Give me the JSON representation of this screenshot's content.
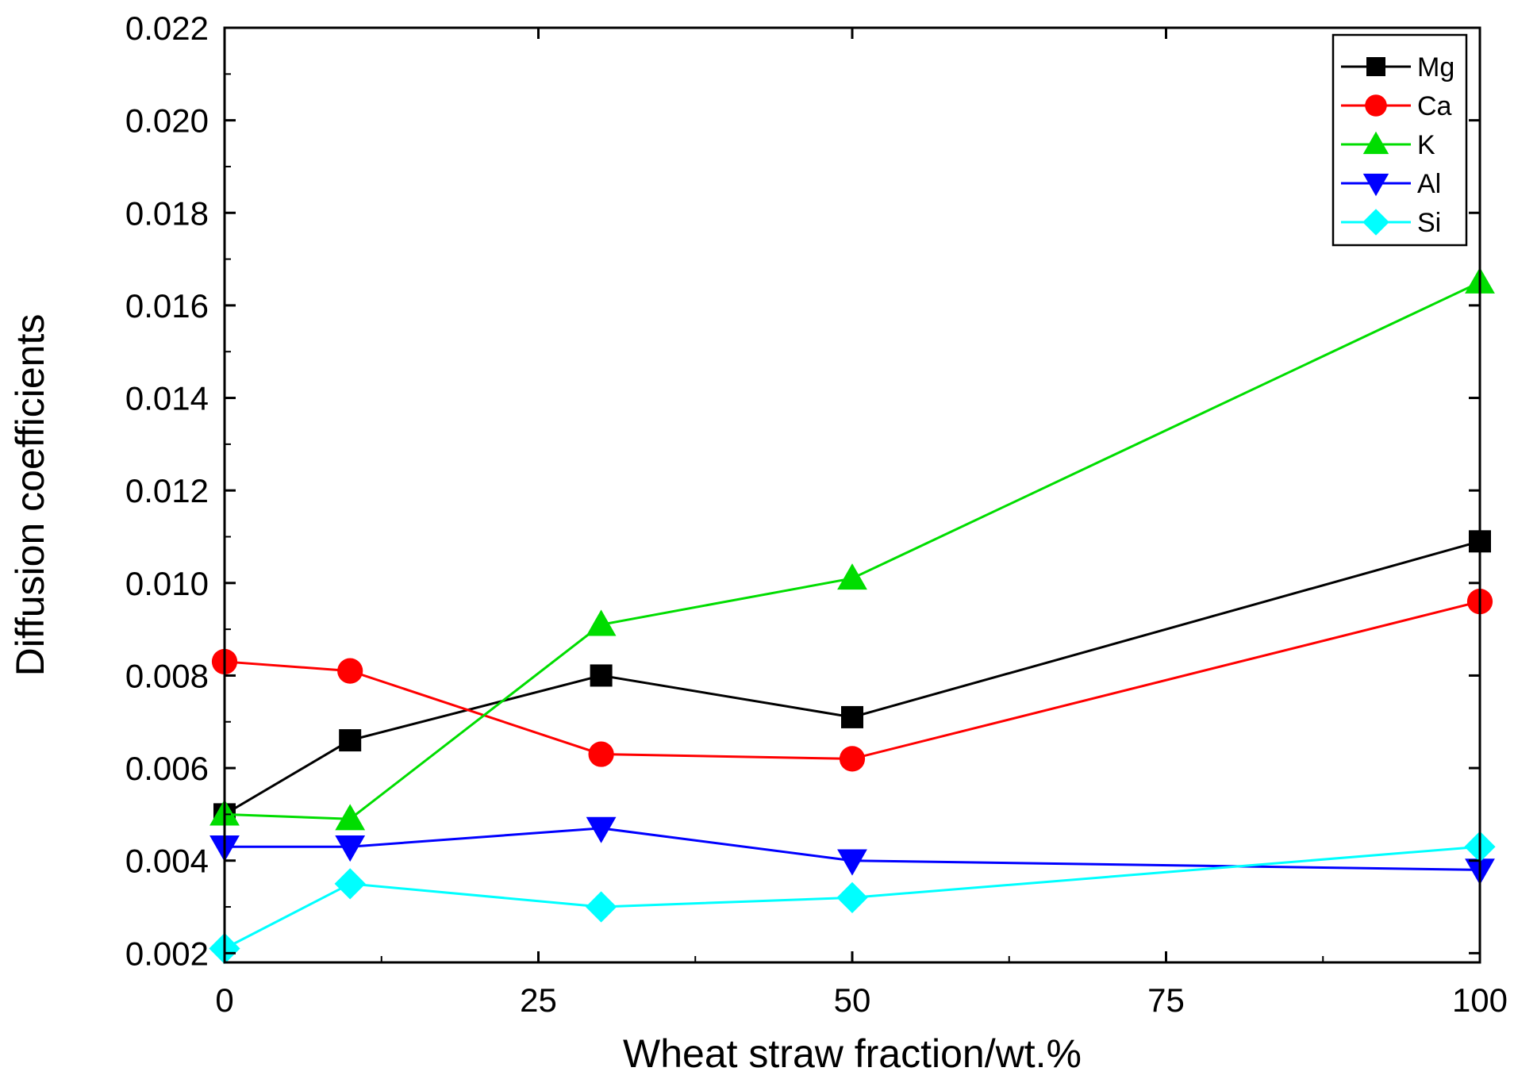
{
  "chart_data": {
    "type": "line",
    "xlabel": "Wheat straw fraction/wt.%",
    "ylabel": "Diffusion coefficients",
    "xlim": [
      0,
      100
    ],
    "ylim": [
      0.0018,
      0.022
    ],
    "xticks": [
      0,
      25,
      50,
      75,
      100
    ],
    "xtick_labels": [
      "0",
      "25",
      "50",
      "75",
      "100"
    ],
    "yticks": [
      0.002,
      0.004,
      0.006,
      0.008,
      0.01,
      0.012,
      0.014,
      0.016,
      0.018,
      0.02,
      0.022
    ],
    "ytick_labels": [
      "0.002",
      "0.004",
      "0.006",
      "0.008",
      "0.010",
      "0.012",
      "0.014",
      "0.016",
      "0.018",
      "0.020",
      "0.022"
    ],
    "grid": false,
    "legend_position": "top-right",
    "x": [
      0,
      10,
      30,
      50,
      100
    ],
    "series": [
      {
        "name": "Mg",
        "marker": "square",
        "color": "#000000",
        "values": [
          0.005,
          0.0066,
          0.008,
          0.0071,
          0.0109
        ]
      },
      {
        "name": "Ca",
        "marker": "circle",
        "color": "#ff0000",
        "values": [
          0.0083,
          0.0081,
          0.0063,
          0.0062,
          0.0096
        ]
      },
      {
        "name": "K",
        "marker": "triangle-up",
        "color": "#00dd00",
        "values": [
          0.005,
          0.0049,
          0.0091,
          0.0101,
          0.0165
        ]
      },
      {
        "name": "Al",
        "marker": "triangle-down",
        "color": "#0000ff",
        "values": [
          0.0043,
          0.0043,
          0.0047,
          0.004,
          0.0038
        ]
      },
      {
        "name": "Si",
        "marker": "diamond",
        "color": "#00ffff",
        "values": [
          0.0021,
          0.0035,
          0.003,
          0.0032,
          0.0043
        ]
      }
    ]
  }
}
